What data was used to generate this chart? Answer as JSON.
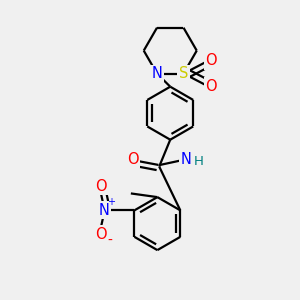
{
  "bg": "#f0f0f0",
  "lc": "#000000",
  "lw": 1.6,
  "atom_colors": {
    "N": "#0000ff",
    "O": "#ff0000",
    "S": "#cccc00",
    "H": "#008080"
  },
  "fs": 10.5
}
